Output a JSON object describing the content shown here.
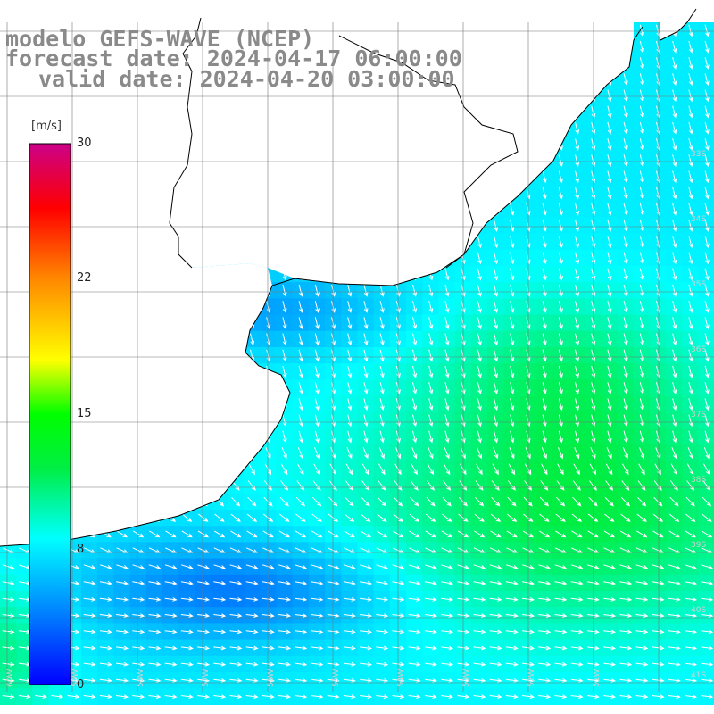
{
  "title": {
    "line1": "modelo GEFS-WAVE (NCEP)",
    "line2": "forecast date: 2024-04-17 06:00:00",
    "line3": "valid date: 2024-04-20 03:00:00"
  },
  "colorbar": {
    "unit": "[m/s]",
    "ticks": [
      "30",
      "22",
      "15",
      "8",
      "0"
    ],
    "tick_values": [
      30,
      22,
      15,
      8,
      0
    ],
    "range": [
      0,
      30
    ],
    "stops": [
      "#0000ff",
      "#0088ff",
      "#00ffff",
      "#00ff00",
      "#ffff00",
      "#ff8800",
      "#ff0000",
      "#cc0088"
    ]
  },
  "map": {
    "lat_labels": [
      "33S",
      "34S",
      "35S",
      "36S",
      "37S",
      "38S",
      "39S",
      "40S",
      "41S"
    ],
    "lon_labels": [
      "60W",
      "59W",
      "58W",
      "57W",
      "56W",
      "55W",
      "54W",
      "53W",
      "52W",
      "51W"
    ],
    "land_color": "#ffffff",
    "arrow_color": "#ffffff"
  }
}
